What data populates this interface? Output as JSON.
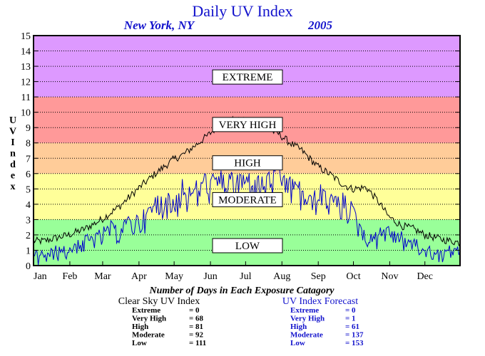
{
  "chart_data": {
    "type": "line",
    "title": "Daily UV Index",
    "location": "New York, NY",
    "year": "2005",
    "ylabel": "UV Index",
    "ylim": [
      0,
      15
    ],
    "y_ticks": [
      0,
      1,
      2,
      3,
      4,
      5,
      6,
      7,
      8,
      9,
      10,
      11,
      12,
      13,
      14,
      15
    ],
    "x_ticks": [
      "Jan",
      "Feb",
      "Mar",
      "Apr",
      "May",
      "Jun",
      "Jul",
      "Aug",
      "Sep",
      "Oct",
      "Nov",
      "Dec"
    ],
    "grid": true,
    "bands": [
      {
        "label": "LOW",
        "from": 0,
        "to": 3,
        "color": "#99ff99"
      },
      {
        "label": "MODERATE",
        "from": 3,
        "to": 6,
        "color": "#ffff99"
      },
      {
        "label": "HIGH",
        "from": 6,
        "to": 8,
        "color": "#ffcc99"
      },
      {
        "label": "VERY HIGH",
        "from": 8,
        "to": 11,
        "color": "#ff9999"
      },
      {
        "label": "EXTREME",
        "from": 11,
        "to": 15,
        "color": "#dd99ff"
      }
    ],
    "series": [
      {
        "name": "Clear Sky UV Index",
        "color": "#000000",
        "points": [
          [
            1,
            1.6
          ],
          [
            10,
            1.6
          ],
          [
            20,
            1.8
          ],
          [
            31,
            2.0
          ],
          [
            45,
            2.4
          ],
          [
            59,
            3.0
          ],
          [
            75,
            3.9
          ],
          [
            90,
            5.0
          ],
          [
            105,
            6.0
          ],
          [
            120,
            6.9
          ],
          [
            130,
            7.3
          ],
          [
            140,
            7.9
          ],
          [
            150,
            8.5
          ],
          [
            160,
            9.2
          ],
          [
            170,
            9.5
          ],
          [
            180,
            9.4
          ],
          [
            190,
            9.1
          ],
          [
            200,
            8.9
          ],
          [
            210,
            8.6
          ],
          [
            220,
            8.0
          ],
          [
            230,
            7.5
          ],
          [
            243,
            6.5
          ],
          [
            255,
            5.9
          ],
          [
            265,
            5.3
          ],
          [
            273,
            5.0
          ],
          [
            285,
            5.1
          ],
          [
            295,
            4.2
          ],
          [
            304,
            3.2
          ],
          [
            315,
            2.6
          ],
          [
            325,
            2.4
          ],
          [
            335,
            2.0
          ],
          [
            350,
            1.7
          ],
          [
            365,
            1.5
          ]
        ]
      },
      {
        "name": "UV Index Forecast",
        "color": "#0000cc",
        "points": [
          [
            1,
            0.8
          ],
          [
            8,
            1.1
          ],
          [
            15,
            0.9
          ],
          [
            22,
            1.3
          ],
          [
            31,
            1.2
          ],
          [
            40,
            1.7
          ],
          [
            50,
            2.0
          ],
          [
            59,
            2.2
          ],
          [
            66,
            2.8
          ],
          [
            75,
            2.7
          ],
          [
            82,
            3.2
          ],
          [
            90,
            3.3
          ],
          [
            97,
            3.6
          ],
          [
            105,
            4.4
          ],
          [
            112,
            4.8
          ],
          [
            120,
            4.3
          ],
          [
            128,
            5.5
          ],
          [
            135,
            5.2
          ],
          [
            142,
            5.6
          ],
          [
            150,
            6.0
          ],
          [
            158,
            5.8
          ],
          [
            165,
            6.3
          ],
          [
            172,
            6.0
          ],
          [
            180,
            6.1
          ],
          [
            188,
            6.0
          ],
          [
            195,
            5.8
          ],
          [
            203,
            6.2
          ],
          [
            210,
            6.5
          ],
          [
            218,
            6.0
          ],
          [
            225,
            5.6
          ],
          [
            232,
            5.2
          ],
          [
            238,
            4.5
          ],
          [
            245,
            5.3
          ],
          [
            252,
            5.0
          ],
          [
            258,
            4.6
          ],
          [
            265,
            4.6
          ],
          [
            272,
            4.2
          ],
          [
            278,
            3.0
          ],
          [
            284,
            2.3
          ],
          [
            290,
            2.0
          ],
          [
            297,
            2.7
          ],
          [
            304,
            2.6
          ],
          [
            311,
            2.3
          ],
          [
            318,
            1.9
          ],
          [
            325,
            1.8
          ],
          [
            332,
            1.2
          ],
          [
            340,
            1.4
          ],
          [
            348,
            0.9
          ],
          [
            356,
            1.2
          ],
          [
            365,
            1.3
          ]
        ],
        "noise": 1.6
      }
    ],
    "summary": {
      "heading": "Number of Days in Each Exposure Catagory",
      "groups": [
        {
          "name": "Clear Sky UV Index",
          "rows": [
            {
              "label": "Extreme",
              "value": "0"
            },
            {
              "label": "Very High",
              "value": "68"
            },
            {
              "label": "High",
              "value": "81"
            },
            {
              "label": "Moderate",
              "value": "92"
            },
            {
              "label": "Low",
              "value": "111"
            }
          ]
        },
        {
          "name": "UV Index Forecast",
          "rows": [
            {
              "label": "Extreme",
              "value": "0"
            },
            {
              "label": "Very High",
              "value": "1"
            },
            {
              "label": "High",
              "value": "61"
            },
            {
              "label": "Moderate",
              "value": "137"
            },
            {
              "label": "Low",
              "value": "153"
            }
          ]
        }
      ]
    }
  }
}
